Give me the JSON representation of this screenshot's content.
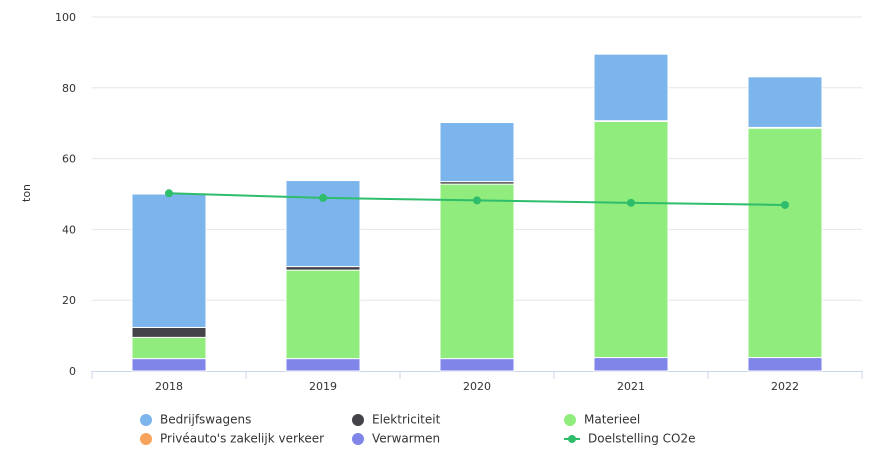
{
  "chart_data": {
    "type": "bar",
    "title": "",
    "ylabel": "ton",
    "xlabel": "",
    "ylim": [
      0,
      100
    ],
    "yticks": [
      0,
      20,
      40,
      60,
      80,
      100
    ],
    "grid": true,
    "legend_position": "bottom",
    "categories": [
      "2018",
      "2019",
      "2020",
      "2021",
      "2022"
    ],
    "stacked_series": [
      {
        "name": "Verwarmen",
        "color": "#8085e9",
        "values": [
          3.5,
          3.5,
          3.5,
          3.8,
          3.8
        ]
      },
      {
        "name": "Privéauto's zakelijk verkeer",
        "color": "#f7a35c",
        "values": [
          0,
          0,
          0,
          0,
          0
        ]
      },
      {
        "name": "Materieel",
        "color": "#90ed7d",
        "values": [
          6.0,
          25.0,
          49.3,
          66.7,
          64.8
        ]
      },
      {
        "name": "Elektriciteit",
        "color": "#434348",
        "values": [
          2.8,
          1.0,
          0.7,
          0.2,
          0.2
        ]
      },
      {
        "name": "Bedrijfswagens",
        "color": "#7cb5ec",
        "values": [
          37.7,
          24.3,
          16.7,
          18.8,
          14.3
        ]
      }
    ],
    "line_series": [
      {
        "name": "Doelstelling CO2e",
        "color": "#2ebd6b",
        "values": [
          50.2,
          48.9,
          48.2,
          47.5,
          46.9
        ]
      }
    ],
    "legend": [
      {
        "name": "Bedrijfswagens",
        "color": "#7cb5ec",
        "symbol": "dot"
      },
      {
        "name": "Elektriciteit",
        "color": "#434348",
        "symbol": "dot"
      },
      {
        "name": "Materieel",
        "color": "#90ed7d",
        "symbol": "dot"
      },
      {
        "name": "Privéauto's zakelijk verkeer",
        "color": "#f7a35c",
        "symbol": "dot"
      },
      {
        "name": "Verwarmen",
        "color": "#8085e9",
        "symbol": "dot"
      },
      {
        "name": "Doelstelling CO2e",
        "color": "#2ebd6b",
        "symbol": "line"
      }
    ]
  }
}
